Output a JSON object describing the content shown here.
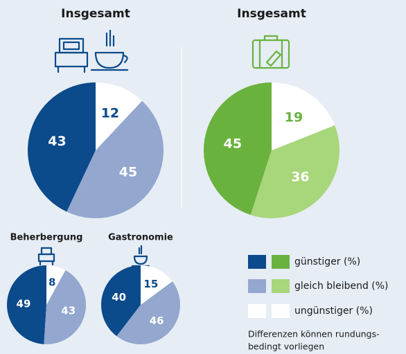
{
  "chart_data": [
    {
      "type": "pie",
      "title": "Insgesamt",
      "values": [
        43,
        45,
        12
      ],
      "colors": [
        "#0b4a8b",
        "#93a7cf",
        "#ffffff"
      ]
    },
    {
      "type": "pie",
      "title": "Insgesamt",
      "values": [
        45,
        36,
        19
      ],
      "colors": [
        "#6ab23e",
        "#a8d67a",
        "#ffffff"
      ]
    },
    {
      "type": "pie",
      "title": "Beherbergung",
      "values": [
        49,
        43,
        8
      ],
      "colors": [
        "#0b4a8b",
        "#93a7cf",
        "#ffffff"
      ]
    },
    {
      "type": "pie",
      "title": "Gastronomie",
      "values": [
        40,
        46,
        15
      ],
      "colors": [
        "#0b4a8b",
        "#93a7cf",
        "#ffffff"
      ]
    }
  ],
  "legend": {
    "labels": [
      "günstiger (%)",
      "gleich bleibend (%)",
      "ungünstiger (%)"
    ],
    "colors": [
      [
        "#0b4a8b",
        "#6ab23e"
      ],
      [
        "#93a7cf",
        "#a8d67a"
      ],
      [
        "#ffffff",
        "#ffffff"
      ]
    ]
  },
  "note": [
    "Differenzen können rundungs-",
    "bedingt vorliegen"
  ]
}
